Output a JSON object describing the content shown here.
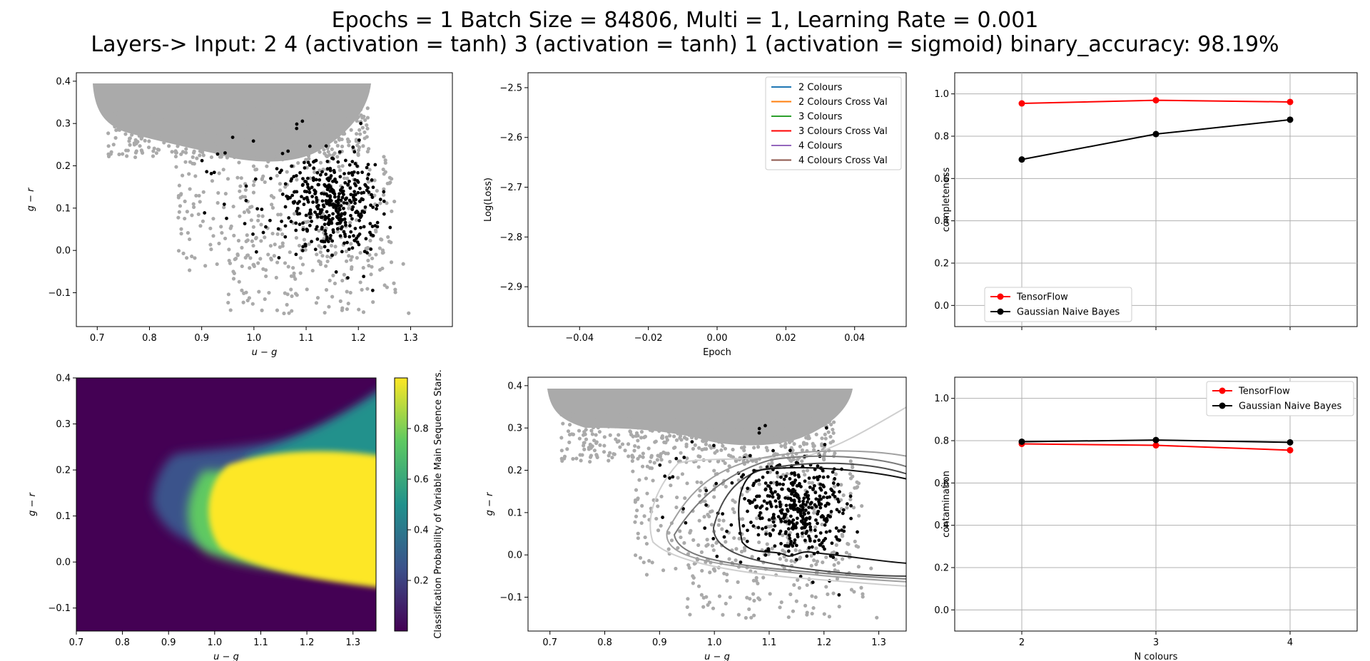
{
  "figure": {
    "title_line1": "Epochs = 1 Batch Size = 84806, Multi = 1, Learning Rate = 0.001",
    "title_line2": "Layers-> Input: 2  4 (activation = tanh) 3 (activation = tanh) 1 (activation = sigmoid) binary_accuracy: 98.19%"
  },
  "chart_data": [
    {
      "id": "scatter_top",
      "type": "scatter",
      "xlabel": "u − g",
      "ylabel": "g − r",
      "xlim": [
        0.66,
        1.38
      ],
      "ylim": [
        -0.18,
        0.42
      ],
      "xticks": [
        0.7,
        0.8,
        0.9,
        1.0,
        1.1,
        1.2,
        1.3
      ],
      "yticks": [
        -0.1,
        0.0,
        0.1,
        0.2,
        0.3,
        0.4
      ],
      "grid": false,
      "series": [
        {
          "values": "dense cloud of ~85k points: filled region u-g 0.7-1.22 at g-r 0.26-0.40, sparser tail to u-g 1.34 and g-r -0.15",
          "color": "#aaaaaa"
        },
        {
          "values": "~450 points centred near u-g 1.15, g-r 0.10",
          "color": "#000000"
        }
      ]
    },
    {
      "id": "loss",
      "type": "line",
      "xlabel": "Epoch",
      "ylabel": "Log(Loss)",
      "xlim": [
        -0.055,
        0.055
      ],
      "ylim": [
        -2.98,
        -2.47
      ],
      "xticks": [
        -0.04,
        -0.02,
        0.0,
        0.02,
        0.04
      ],
      "yticks": [
        -2.9,
        -2.8,
        -2.7,
        -2.6,
        -2.5
      ],
      "grid": false,
      "legend_position": "upper right",
      "series": [
        {
          "name": "2 Colours",
          "color": "#1f77b4",
          "x": [],
          "y": []
        },
        {
          "name": "2 Colours Cross Val",
          "color": "#ff7f0e",
          "x": [],
          "y": []
        },
        {
          "name": "3 Colours",
          "color": "#2ca02c",
          "x": [],
          "y": []
        },
        {
          "name": "3 Colours Cross Val",
          "color": "#ff0000",
          "x": [],
          "y": []
        },
        {
          "name": "4 Colours",
          "color": "#9467bd",
          "x": [],
          "y": []
        },
        {
          "name": "4 Colours Cross Val",
          "color": "#8c564b",
          "x": [],
          "y": []
        }
      ]
    },
    {
      "id": "completeness",
      "type": "line",
      "xlabel": "",
      "ylabel": "completeness",
      "xlim": [
        1.5,
        4.5
      ],
      "ylim": [
        -0.1,
        1.1
      ],
      "xticks": [
        2,
        3,
        4
      ],
      "yticks": [
        0.0,
        0.2,
        0.4,
        0.6,
        0.8,
        1.0
      ],
      "grid": true,
      "legend_position": "lower left",
      "series": [
        {
          "name": "TensorFlow",
          "color": "#ff0000",
          "x": [
            2,
            3,
            4
          ],
          "y": [
            0.955,
            0.97,
            0.962
          ]
        },
        {
          "name": "Gaussian Naive Bayes",
          "color": "#000000",
          "x": [
            2,
            3,
            4
          ],
          "y": [
            0.69,
            0.81,
            0.878
          ]
        }
      ]
    },
    {
      "id": "heatmap",
      "type": "heatmap",
      "xlabel": "u − g",
      "ylabel": "g − r",
      "xlim": [
        0.7,
        1.35
      ],
      "ylim": [
        -0.15,
        0.4
      ],
      "xticks": [
        0.7,
        0.8,
        0.9,
        1.0,
        1.1,
        1.2,
        1.3
      ],
      "yticks": [
        -0.1,
        0.0,
        0.1,
        0.2,
        0.3,
        0.4
      ],
      "colormap": "viridis",
      "colorbar_label": "Classification Probability of Variable Main Sequence Stars.",
      "colorbar_ticks": [
        0.2,
        0.4,
        0.6,
        0.8
      ]
    },
    {
      "id": "scatter_contour",
      "type": "scatter",
      "xlabel": "u − g",
      "ylabel": "g − r",
      "xlim": [
        0.66,
        1.35
      ],
      "ylim": [
        -0.18,
        0.42
      ],
      "xticks": [
        0.7,
        0.8,
        0.9,
        1.0,
        1.1,
        1.2,
        1.3
      ],
      "yticks": [
        -0.1,
        0.0,
        0.1,
        0.2,
        0.3,
        0.4
      ],
      "grid": false,
      "series": [
        {
          "values": "same grey point cloud as top-left panel",
          "color": "#aaaaaa"
        },
        {
          "values": "same black points as top-left panel",
          "color": "#000000"
        }
      ],
      "contour_colors": [
        "#cfcfcf",
        "#a0a0a0",
        "#7a7a7a",
        "#4a4a4a",
        "#111111"
      ]
    },
    {
      "id": "contamination",
      "type": "line",
      "xlabel": "N colours",
      "ylabel": "contamination",
      "xlim": [
        1.5,
        4.5
      ],
      "ylim": [
        -0.1,
        1.1
      ],
      "xticks": [
        2,
        3,
        4
      ],
      "yticks": [
        0.0,
        0.2,
        0.4,
        0.6,
        0.8,
        1.0
      ],
      "grid": true,
      "legend_position": "upper right",
      "series": [
        {
          "name": "TensorFlow",
          "color": "#ff0000",
          "x": [
            2,
            3,
            4
          ],
          "y": [
            0.785,
            0.778,
            0.755
          ]
        },
        {
          "name": "Gaussian Naive Bayes",
          "color": "#000000",
          "x": [
            2,
            3,
            4
          ],
          "y": [
            0.795,
            0.803,
            0.792
          ]
        }
      ]
    }
  ]
}
